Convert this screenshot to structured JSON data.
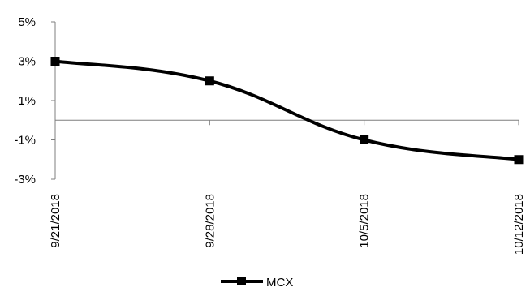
{
  "chart_data": {
    "type": "line",
    "x": [
      "9/21/2018",
      "9/28/2018",
      "10/5/2018",
      "10/12/2018"
    ],
    "series": [
      {
        "name": "MCX",
        "values": [
          3.0,
          2.0,
          -1.0,
          -2.0
        ]
      }
    ],
    "y_ticks": [
      "5%",
      "3%",
      "1%",
      "-1%",
      "-3%"
    ],
    "ylim": [
      -3,
      5
    ],
    "grid": false,
    "legend": "bottom",
    "series_color": "#000000",
    "marker": "square"
  }
}
